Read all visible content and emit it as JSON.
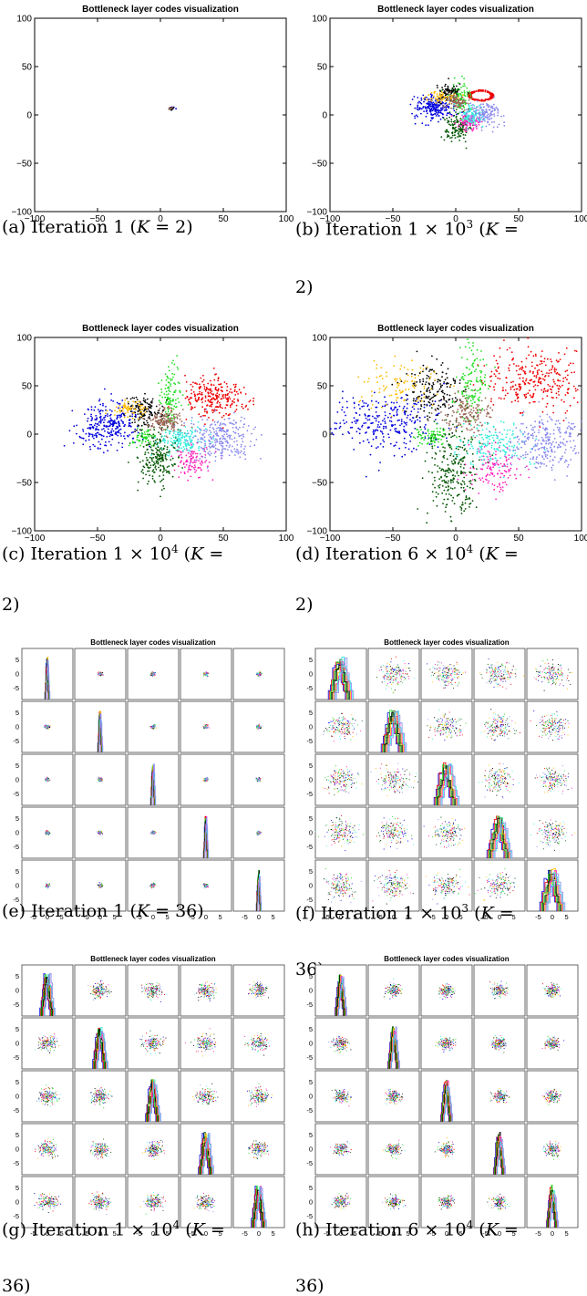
{
  "colors": {
    "blue": "#0000dd",
    "red": "#ee0000",
    "green": "#22dd22",
    "darkgreen": "#005500",
    "black": "#000000",
    "orange": "#ffbb00",
    "brown": "#996655",
    "magenta": "#ff22bb",
    "cyan": "#33eedd",
    "lightblue": "#8888ee"
  },
  "chart_data": [
    {
      "id": "a",
      "type": "scatter",
      "title": "Bottleneck layer codes visualization",
      "xlim": [
        -100,
        100
      ],
      "ylim": [
        -100,
        100
      ],
      "xticks": [
        "−100",
        "−50",
        "0",
        "50",
        "100"
      ],
      "yticks": [
        "100",
        "50",
        "0",
        "−50",
        "−100"
      ],
      "series_colors": [
        "blue",
        "red",
        "green",
        "darkgreen",
        "black",
        "orange",
        "brown",
        "magenta",
        "cyan",
        "lightblue"
      ],
      "clusters": [
        {
          "color": "blue",
          "cx": 9,
          "cy": 7,
          "sx": 1.2,
          "sy": 1.0,
          "n": 12
        },
        {
          "color": "black",
          "cx": 9,
          "cy": 7,
          "sx": 1.0,
          "sy": 1.0,
          "n": 10
        },
        {
          "color": "brown",
          "cx": 9,
          "cy": 7,
          "sx": 0.8,
          "sy": 0.8,
          "n": 6
        }
      ],
      "caption": {
        "prefix": "(a) Iteration 1 (",
        "k": "K",
        "eq": " = 2)",
        "cont": ""
      }
    },
    {
      "id": "b",
      "type": "scatter",
      "title": "Bottleneck layer codes visualization",
      "xlim": [
        -100,
        100
      ],
      "ylim": [
        -100,
        100
      ],
      "xticks": [
        "−100",
        "−50",
        "0",
        "50",
        "100"
      ],
      "yticks": [
        "100",
        "50",
        "0",
        "−50",
        "−100"
      ],
      "series_colors": [
        "blue",
        "red",
        "green",
        "darkgreen",
        "black",
        "orange",
        "brown",
        "magenta",
        "cyan",
        "lightblue"
      ],
      "clusters": [
        {
          "color": "blue",
          "cx": -17,
          "cy": 8,
          "sx": 8,
          "sy": 6,
          "n": 220
        },
        {
          "color": "red",
          "cx": 20,
          "cy": 20,
          "sx": 9,
          "sy": 5,
          "n": 160,
          "ring": true
        },
        {
          "color": "green",
          "cx": 3,
          "cy": 20,
          "sx": 4,
          "sy": 8,
          "n": 90
        },
        {
          "color": "darkgreen",
          "cx": 1,
          "cy": -12,
          "sx": 5,
          "sy": 7,
          "n": 140
        },
        {
          "color": "black",
          "cx": -6,
          "cy": 23,
          "sx": 5,
          "sy": 5,
          "n": 90
        },
        {
          "color": "orange",
          "cx": -12,
          "cy": 18,
          "sx": 6,
          "sy": 3,
          "n": 60
        },
        {
          "color": "brown",
          "cx": 1,
          "cy": 13,
          "sx": 4,
          "sy": 4,
          "n": 80
        },
        {
          "color": "magenta",
          "cx": 11,
          "cy": -8,
          "sx": 5,
          "sy": 5,
          "n": 80
        },
        {
          "color": "cyan",
          "cx": 13,
          "cy": 0,
          "sx": 5,
          "sy": 5,
          "n": 100
        },
        {
          "color": "lightblue",
          "cx": 24,
          "cy": 0,
          "sx": 7,
          "sy": 6,
          "n": 140
        }
      ],
      "caption": {
        "prefix": "(b) Iteration 1 × 10",
        "sup": "3",
        "k": "K",
        "eq": " =",
        "cont": "2)"
      }
    },
    {
      "id": "c",
      "type": "scatter",
      "title": "Bottleneck layer codes visualization",
      "xlim": [
        -100,
        100
      ],
      "ylim": [
        -100,
        100
      ],
      "xticks": [
        "−100",
        "−50",
        "0",
        "50",
        "100"
      ],
      "yticks": [
        "100",
        "50",
        "0",
        "−50",
        "−100"
      ],
      "series_colors": [
        "blue",
        "red",
        "green",
        "darkgreen",
        "black",
        "orange",
        "brown",
        "magenta",
        "cyan",
        "lightblue"
      ],
      "clusters": [
        {
          "color": "blue",
          "cx": -42,
          "cy": 10,
          "sx": 13,
          "sy": 11,
          "n": 280
        },
        {
          "color": "red",
          "cx": 42,
          "cy": 38,
          "sx": 12,
          "sy": 10,
          "n": 260
        },
        {
          "color": "green",
          "cx": 8,
          "cy": 38,
          "sx": 4,
          "sy": 13,
          "n": 120
        },
        {
          "color": "green",
          "cx": -14,
          "cy": -4,
          "sx": 5,
          "sy": 4,
          "n": 60
        },
        {
          "color": "darkgreen",
          "cx": -2,
          "cy": -24,
          "sx": 8,
          "sy": 14,
          "n": 220
        },
        {
          "color": "black",
          "cx": -12,
          "cy": 24,
          "sx": 8,
          "sy": 8,
          "n": 140
        },
        {
          "color": "orange",
          "cx": -24,
          "cy": 26,
          "sx": 8,
          "sy": 4,
          "n": 70
        },
        {
          "color": "brown",
          "cx": 4,
          "cy": 14,
          "sx": 7,
          "sy": 7,
          "n": 150
        },
        {
          "color": "magenta",
          "cx": 26,
          "cy": -28,
          "sx": 7,
          "sy": 8,
          "n": 110
        },
        {
          "color": "cyan",
          "cx": 18,
          "cy": -6,
          "sx": 9,
          "sy": 7,
          "n": 160
        },
        {
          "color": "lightblue",
          "cx": 48,
          "cy": -4,
          "sx": 12,
          "sy": 11,
          "n": 260
        }
      ],
      "caption": {
        "prefix": "(c) Iteration 1 × 10",
        "sup": "4",
        "k": "K",
        "eq": " =",
        "cont": "2)"
      }
    },
    {
      "id": "d",
      "type": "scatter",
      "title": "Bottleneck layer codes visualization",
      "xlim": [
        -100,
        100
      ],
      "ylim": [
        -100,
        100
      ],
      "xticks": [
        "−100",
        "−50",
        "0",
        "50",
        "100"
      ],
      "yticks": [
        "100",
        "50",
        "0",
        "−50",
        "−100"
      ],
      "series_colors": [
        "blue",
        "red",
        "green",
        "darkgreen",
        "black",
        "orange",
        "brown",
        "magenta",
        "cyan",
        "lightblue"
      ],
      "clusters": [
        {
          "color": "blue",
          "cx": -55,
          "cy": 12,
          "sx": 22,
          "sy": 15,
          "n": 300
        },
        {
          "color": "red",
          "cx": 62,
          "cy": 55,
          "sx": 20,
          "sy": 16,
          "n": 300
        },
        {
          "color": "green",
          "cx": 12,
          "cy": 50,
          "sx": 6,
          "sy": 20,
          "n": 140
        },
        {
          "color": "green",
          "cx": -18,
          "cy": -2,
          "sx": 7,
          "sy": 5,
          "n": 80
        },
        {
          "color": "darkgreen",
          "cx": -2,
          "cy": -42,
          "sx": 10,
          "sy": 24,
          "n": 260
        },
        {
          "color": "black",
          "cx": -18,
          "cy": 42,
          "sx": 12,
          "sy": 16,
          "n": 180
        },
        {
          "color": "orange",
          "cx": -45,
          "cy": 50,
          "sx": 16,
          "sy": 14,
          "n": 110
        },
        {
          "color": "brown",
          "cx": 8,
          "cy": 20,
          "sx": 10,
          "sy": 10,
          "n": 160
        },
        {
          "color": "magenta",
          "cx": 30,
          "cy": -36,
          "sx": 10,
          "sy": 12,
          "n": 130
        },
        {
          "color": "cyan",
          "cx": 30,
          "cy": -10,
          "sx": 14,
          "sy": 12,
          "n": 170
        },
        {
          "color": "lightblue",
          "cx": 72,
          "cy": -8,
          "sx": 18,
          "sy": 14,
          "n": 280
        }
      ],
      "caption": {
        "prefix": "(d) Iteration 6 × 10",
        "sup": "4",
        "k": "K",
        "eq": " =",
        "cont": "2)"
      }
    },
    {
      "id": "e",
      "type": "scatter-matrix",
      "title": "Bottleneck layer codes visualization",
      "dims": 5,
      "spread": 0.4,
      "hist_width": 0.6,
      "yticks": [
        "5",
        "0",
        "-5"
      ],
      "xticks": [
        "-5",
        "0",
        "5"
      ],
      "caption": {
        "prefix": "(e) Iteration 1 (",
        "k": "K",
        "eq": " = 36)",
        "cont": ""
      }
    },
    {
      "id": "f",
      "type": "scatter-matrix",
      "title": "Bottleneck layer codes visualization",
      "dims": 5,
      "spread": 2.6,
      "hist_width": 3.0,
      "yticks": [
        "5",
        "0",
        "-5"
      ],
      "xticks": [
        "-5",
        "0",
        "5"
      ],
      "caption": {
        "prefix": "(f) Iteration 1 × 10",
        "sup": "3",
        "k": "K",
        "eq": " =",
        "cont": "36)"
      }
    },
    {
      "id": "g",
      "type": "scatter-matrix",
      "title": "Bottleneck layer codes visualization",
      "dims": 5,
      "spread": 1.6,
      "hist_width": 1.8,
      "yticks": [
        "5",
        "0",
        "-5"
      ],
      "xticks": [
        "-5",
        "0",
        "5"
      ],
      "caption": {
        "prefix": "(g) Iteration 1 × 10",
        "sup": "4",
        "k": "K",
        "eq": " =",
        "cont": "36)"
      }
    },
    {
      "id": "h",
      "type": "scatter-matrix",
      "title": "Bottleneck layer codes visualization",
      "dims": 5,
      "spread": 1.3,
      "hist_width": 1.4,
      "yticks": [
        "5",
        "0",
        "-5"
      ],
      "xticks": [
        "-5",
        "0",
        "5"
      ],
      "caption": {
        "prefix": "(h) Iteration 6 × 10",
        "sup": "4",
        "k": "K",
        "eq": " =",
        "cont": "36)"
      }
    }
  ]
}
